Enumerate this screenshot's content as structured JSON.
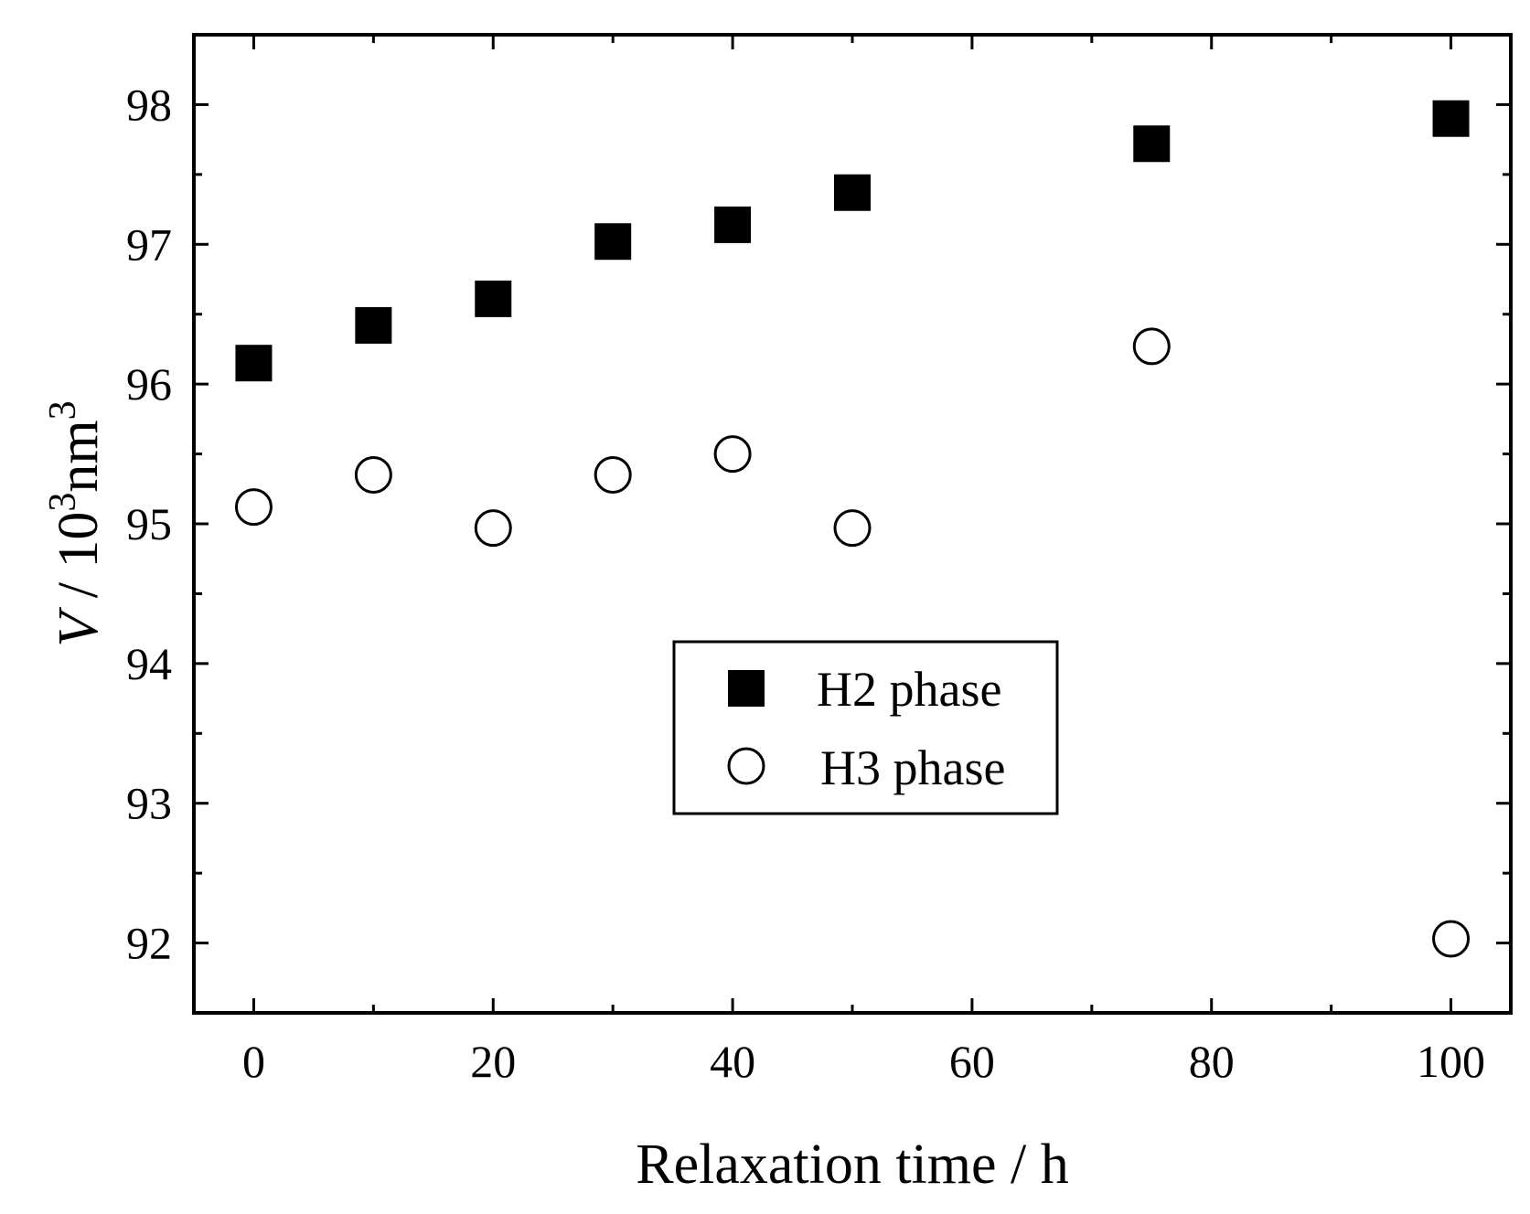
{
  "chart_data": {
    "type": "scatter",
    "title": "",
    "xlabel": "Relaxation time / h",
    "ylabel_parts": {
      "var": "V",
      "sep": " / 10",
      "exp1": "3",
      "unit": "nm",
      "exp2": "3"
    },
    "xlim": [
      -5,
      105
    ],
    "ylim": [
      91.5,
      98.5
    ],
    "xticks": [
      0,
      20,
      40,
      60,
      80,
      100
    ],
    "xtick_labels": [
      "0",
      "20",
      "40",
      "60",
      "80",
      "100"
    ],
    "xminor": [
      10,
      30,
      50,
      70,
      90
    ],
    "yticks": [
      92,
      93,
      94,
      95,
      96,
      97,
      98
    ],
    "ytick_labels": [
      "92",
      "93",
      "94",
      "95",
      "96",
      "97",
      "98"
    ],
    "yminor": [
      92.5,
      93.5,
      94.5,
      95.5,
      96.5,
      97.5
    ],
    "grid": false,
    "legend_position": "center",
    "series": [
      {
        "name": "H2 phase",
        "marker": "filled-square",
        "x": [
          0,
          10,
          20,
          30,
          40,
          50,
          75,
          100
        ],
        "y": [
          96.15,
          96.42,
          96.61,
          97.02,
          97.14,
          97.37,
          97.72,
          97.9
        ]
      },
      {
        "name": "H3 phase",
        "marker": "open-circle",
        "x": [
          0,
          10,
          20,
          30,
          40,
          50,
          75,
          100
        ],
        "y": [
          95.12,
          95.35,
          94.97,
          95.35,
          95.5,
          94.97,
          96.27,
          92.03
        ]
      }
    ]
  },
  "colors": {
    "axis": "#000000",
    "marker": "#000000",
    "background": "#ffffff"
  }
}
